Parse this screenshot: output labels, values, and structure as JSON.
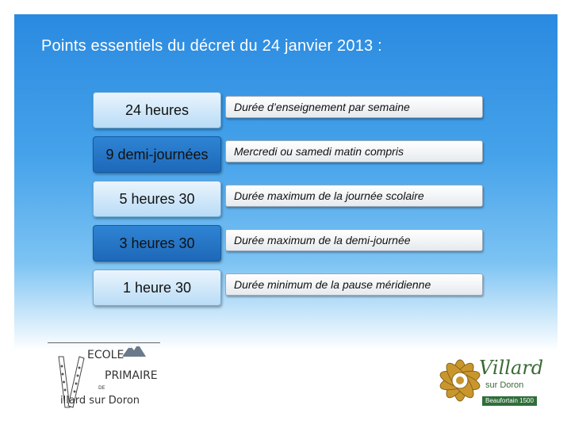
{
  "title": "Points essentiels du décret du 24 janvier 2013 :",
  "rows": [
    {
      "key": "24 heures",
      "desc": "Durée d’enseignement par semaine"
    },
    {
      "key": "9 demi-journées",
      "desc": "Mercredi ou samedi matin compris"
    },
    {
      "key": "5 heures 30",
      "desc": "Durée maximum de la journée scolaire"
    },
    {
      "key": "3 heures 30",
      "desc": "Durée maximum de la demi-journée"
    },
    {
      "key": "1 heure 30",
      "desc": "Durée minimum de la pause méridienne"
    }
  ],
  "school_logo": {
    "line1": "ECOLE",
    "line2": "PRIMAIRE",
    "line3": "DE",
    "line4": "illard sur Doron"
  },
  "town_logo": {
    "name": "Villard",
    "sub": "sur Doron",
    "badge": "Beaufortain 1500"
  },
  "colors": {
    "key_light": "#b9dcf6",
    "key_dark": "#1e68b8",
    "town_green": "#3a6b34",
    "flower_gold": "#c9962e"
  }
}
